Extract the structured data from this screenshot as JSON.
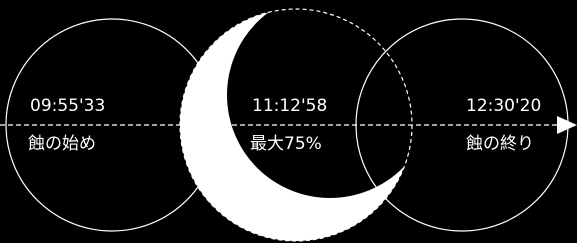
{
  "stages": [
    {
      "time": "09:55'33",
      "label": "蝕の始め"
    },
    {
      "time": "11:12'58",
      "label": "最大75%"
    },
    {
      "time": "12:30'20",
      "label": "蝕の終り"
    }
  ]
}
